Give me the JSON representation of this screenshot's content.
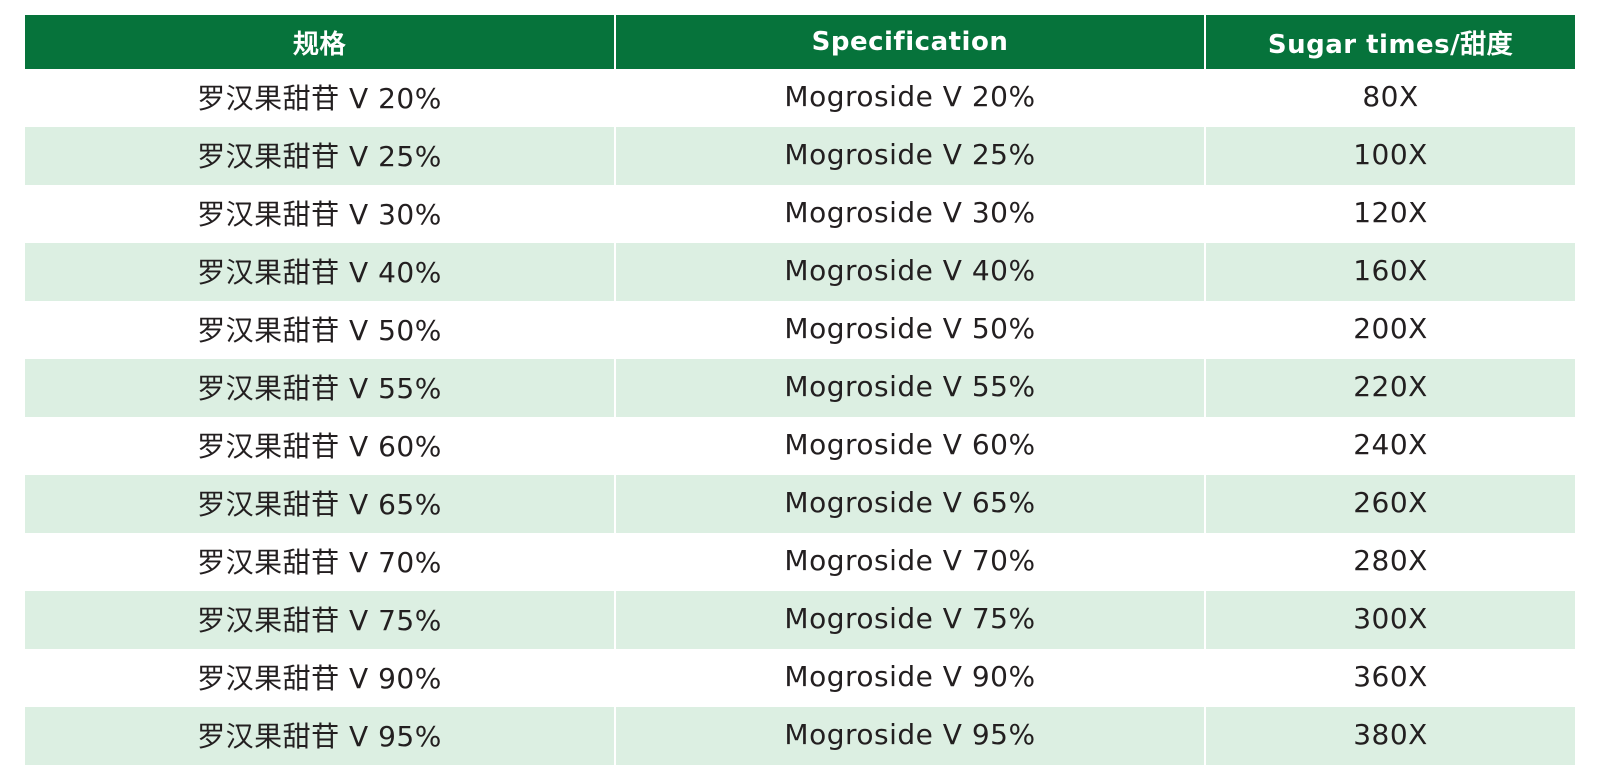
{
  "table": {
    "headers": [
      "规格",
      "Specification",
      "Sugar times/甜度"
    ],
    "rows": [
      [
        "罗汉果甜苷 V 20%",
        "Mogroside V 20%",
        "80X"
      ],
      [
        "罗汉果甜苷 V 25%",
        "Mogroside V 25%",
        "100X"
      ],
      [
        "罗汉果甜苷 V 30%",
        "Mogroside V 30%",
        "120X"
      ],
      [
        "罗汉果甜苷 V 40%",
        "Mogroside V 40%",
        "160X"
      ],
      [
        "罗汉果甜苷 V 50%",
        "Mogroside V 50%",
        "200X"
      ],
      [
        "罗汉果甜苷 V 55%",
        "Mogroside V 55%",
        "220X"
      ],
      [
        "罗汉果甜苷 V 60%",
        "Mogroside V 60%",
        "240X"
      ],
      [
        "罗汉果甜苷 V 65%",
        "Mogroside V 65%",
        "260X"
      ],
      [
        "罗汉果甜苷 V 70%",
        "Mogroside V 70%",
        "280X"
      ],
      [
        "罗汉果甜苷 V 75%",
        "Mogroside V 75%",
        "300X"
      ],
      [
        "罗汉果甜苷 V 90%",
        "Mogroside V 90%",
        "360X"
      ],
      [
        "罗汉果甜苷 V 95%",
        "Mogroside V 95%",
        "380X"
      ]
    ]
  },
  "colors": {
    "header_bg": "#06733b",
    "header_text": "#ffffff",
    "row_alt_bg": "#dcefe2",
    "row_bg": "#ffffff",
    "body_text": "#231f20"
  }
}
